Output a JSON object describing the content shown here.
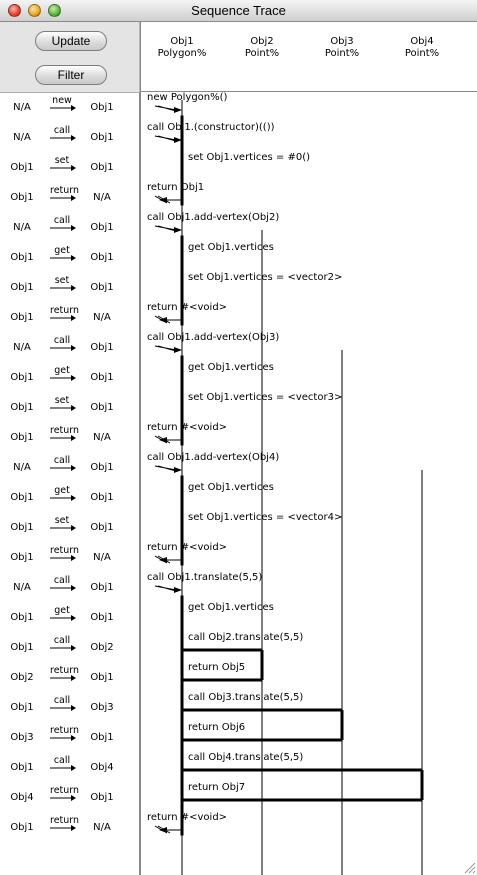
{
  "window": {
    "title": "Sequence Trace"
  },
  "toolbar": {
    "update_label": "Update",
    "filter_label": "Filter"
  },
  "columns": [
    {
      "name": "Obj1",
      "type": "Polygon%"
    },
    {
      "name": "Obj2",
      "type": "Point%"
    },
    {
      "name": "Obj3",
      "type": "Point%"
    },
    {
      "name": "Obj4",
      "type": "Point%"
    }
  ],
  "events": [
    {
      "from": "N/A",
      "action": "new",
      "to": "Obj1"
    },
    {
      "from": "N/A",
      "action": "call",
      "to": "Obj1"
    },
    {
      "from": "Obj1",
      "action": "set",
      "to": "Obj1"
    },
    {
      "from": "Obj1",
      "action": "return",
      "to": "N/A"
    },
    {
      "from": "N/A",
      "action": "call",
      "to": "Obj1"
    },
    {
      "from": "Obj1",
      "action": "get",
      "to": "Obj1"
    },
    {
      "from": "Obj1",
      "action": "set",
      "to": "Obj1"
    },
    {
      "from": "Obj1",
      "action": "return",
      "to": "N/A"
    },
    {
      "from": "N/A",
      "action": "call",
      "to": "Obj1"
    },
    {
      "from": "Obj1",
      "action": "get",
      "to": "Obj1"
    },
    {
      "from": "Obj1",
      "action": "set",
      "to": "Obj1"
    },
    {
      "from": "Obj1",
      "action": "return",
      "to": "N/A"
    },
    {
      "from": "N/A",
      "action": "call",
      "to": "Obj1"
    },
    {
      "from": "Obj1",
      "action": "get",
      "to": "Obj1"
    },
    {
      "from": "Obj1",
      "action": "set",
      "to": "Obj1"
    },
    {
      "from": "Obj1",
      "action": "return",
      "to": "N/A"
    },
    {
      "from": "N/A",
      "action": "call",
      "to": "Obj1"
    },
    {
      "from": "Obj1",
      "action": "get",
      "to": "Obj1"
    },
    {
      "from": "Obj1",
      "action": "call",
      "to": "Obj2"
    },
    {
      "from": "Obj2",
      "action": "return",
      "to": "Obj1"
    },
    {
      "from": "Obj1",
      "action": "call",
      "to": "Obj3"
    },
    {
      "from": "Obj3",
      "action": "return",
      "to": "Obj1"
    },
    {
      "from": "Obj1",
      "action": "call",
      "to": "Obj4"
    },
    {
      "from": "Obj4",
      "action": "return",
      "to": "Obj1"
    },
    {
      "from": "Obj1",
      "action": "return",
      "to": "N/A"
    }
  ],
  "messages": [
    {
      "text": "new Polygon%()",
      "col": -1,
      "tcol": 0,
      "dir": "in"
    },
    {
      "text": "call Obj1.(constructor)(())",
      "col": -1,
      "tcol": 0,
      "dir": "in"
    },
    {
      "text": "set Obj1.vertices = #0()",
      "col": 0,
      "tcol": 0,
      "dir": "self"
    },
    {
      "text": "return Obj1",
      "col": 0,
      "tcol": -1,
      "dir": "out"
    },
    {
      "text": "call Obj1.add-vertex(Obj2)",
      "col": -1,
      "tcol": 0,
      "dir": "in"
    },
    {
      "text": "get Obj1.vertices",
      "col": 0,
      "tcol": 0,
      "dir": "self"
    },
    {
      "text": "set Obj1.vertices = <vector2>",
      "col": 0,
      "tcol": 0,
      "dir": "self"
    },
    {
      "text": "return #<void>",
      "col": 0,
      "tcol": -1,
      "dir": "out"
    },
    {
      "text": "call Obj1.add-vertex(Obj3)",
      "col": -1,
      "tcol": 0,
      "dir": "in"
    },
    {
      "text": "get Obj1.vertices",
      "col": 0,
      "tcol": 0,
      "dir": "self"
    },
    {
      "text": "set Obj1.vertices = <vector3>",
      "col": 0,
      "tcol": 0,
      "dir": "self"
    },
    {
      "text": "return #<void>",
      "col": 0,
      "tcol": -1,
      "dir": "out"
    },
    {
      "text": "call Obj1.add-vertex(Obj4)",
      "col": -1,
      "tcol": 0,
      "dir": "in"
    },
    {
      "text": "get Obj1.vertices",
      "col": 0,
      "tcol": 0,
      "dir": "self"
    },
    {
      "text": "set Obj1.vertices = <vector4>",
      "col": 0,
      "tcol": 0,
      "dir": "self"
    },
    {
      "text": "return #<void>",
      "col": 0,
      "tcol": -1,
      "dir": "out"
    },
    {
      "text": "call Obj1.translate(5,5)",
      "col": -1,
      "tcol": 0,
      "dir": "in"
    },
    {
      "text": "get Obj1.vertices",
      "col": 0,
      "tcol": 0,
      "dir": "self"
    },
    {
      "text": "call Obj2.translate(5,5)",
      "col": 0,
      "tcol": 1,
      "dir": "call"
    },
    {
      "text": "return Obj5",
      "col": 1,
      "tcol": 0,
      "dir": "ret"
    },
    {
      "text": "call Obj3.translate(5,5)",
      "col": 0,
      "tcol": 2,
      "dir": "call"
    },
    {
      "text": "return Obj6",
      "col": 2,
      "tcol": 0,
      "dir": "ret"
    },
    {
      "text": "call Obj4.translate(5,5)",
      "col": 0,
      "tcol": 3,
      "dir": "call"
    },
    {
      "text": "return Obj7",
      "col": 3,
      "tcol": 0,
      "dir": "ret"
    },
    {
      "text": "return #<void>",
      "col": 0,
      "tcol": -1,
      "dir": "out"
    }
  ]
}
